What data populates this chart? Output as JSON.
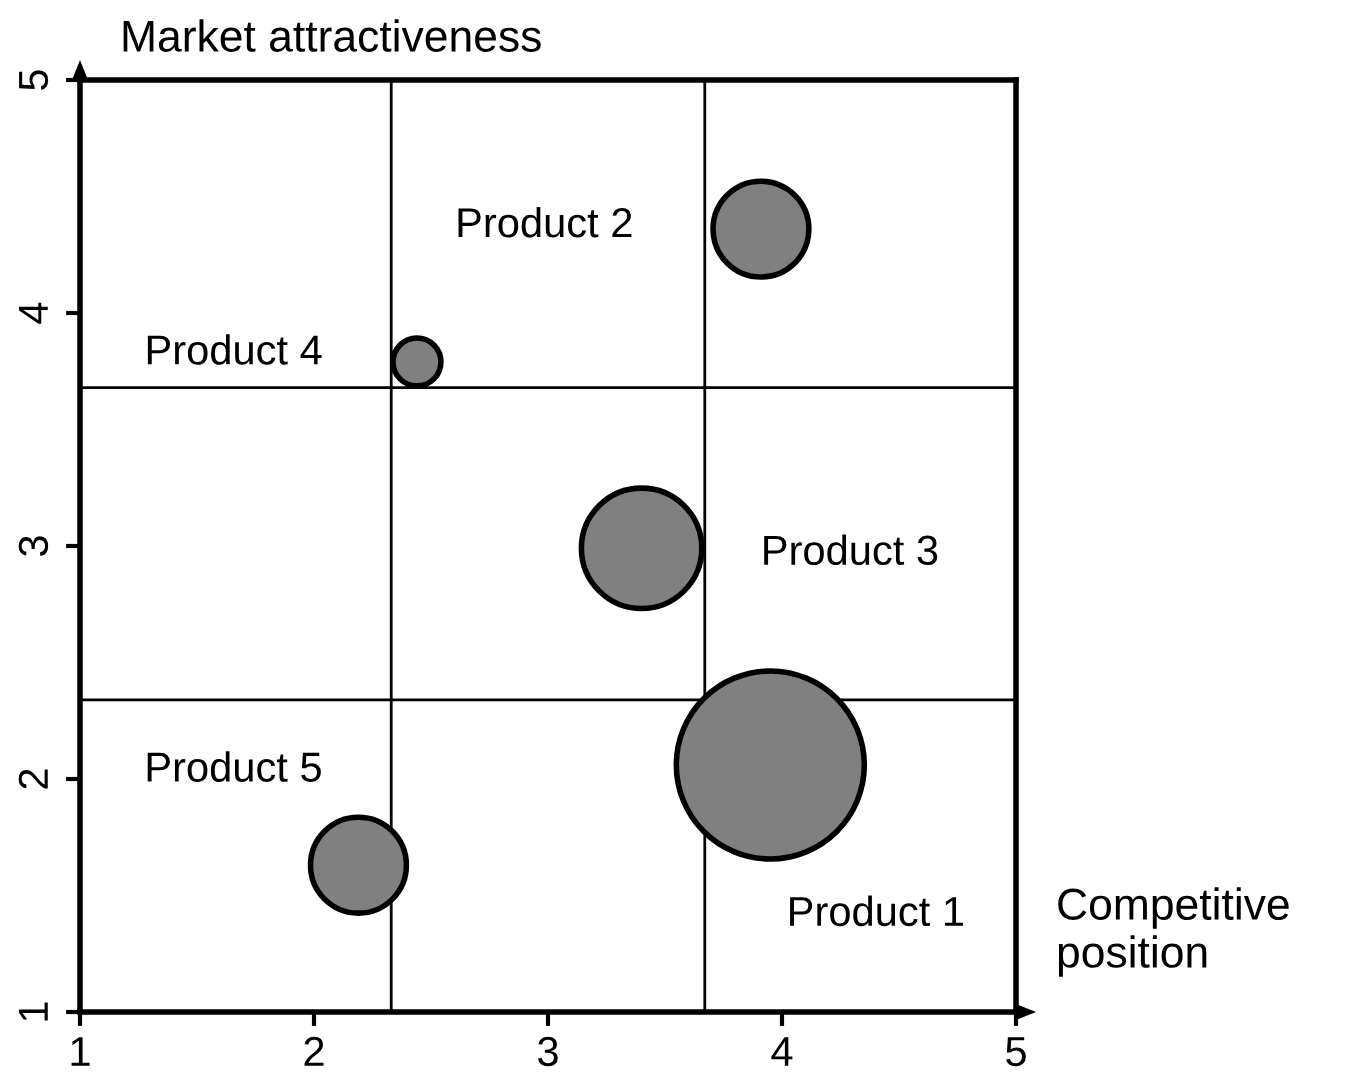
{
  "chart_data": {
    "type": "bubble",
    "xlabel": "Competitive\nposition",
    "ylabel": "Market attractiveness",
    "xlim": [
      1,
      5
    ],
    "ylim": [
      1,
      5
    ],
    "xticks": [
      1,
      2,
      3,
      4,
      5
    ],
    "yticks": [
      1,
      2,
      3,
      4,
      5
    ],
    "grid": false,
    "legend": false,
    "ref_lines": [
      {
        "axis": "x",
        "value": 2.33,
        "color": "#000000"
      },
      {
        "axis": "x",
        "value": 3.67,
        "color": "#000000"
      },
      {
        "axis": "y",
        "value": 2.34,
        "color": "#000000"
      },
      {
        "axis": "y",
        "value": 3.68,
        "color": "#000000"
      }
    ],
    "series": [
      {
        "name": "Product 1",
        "color": "#808080",
        "x": [
          3.95
        ],
        "values": [
          2.06
        ],
        "sizes": [
          1
        ]
      },
      {
        "name": "Product 2",
        "color": "#808080",
        "x": [
          3.91
        ],
        "values": [
          4.36
        ],
        "sizes": [
          0.26
        ]
      },
      {
        "name": "Product 3",
        "color": "#808080",
        "x": [
          3.4
        ],
        "values": [
          2.99
        ],
        "sizes": [
          0.41
        ]
      },
      {
        "name": "Product 4",
        "color": "#808080",
        "x": [
          2.44
        ],
        "values": [
          3.79
        ],
        "sizes": [
          0.065
        ]
      },
      {
        "name": "Product 5",
        "color": "#808080",
        "x": [
          2.19
        ],
        "values": [
          1.63
        ],
        "sizes": [
          0.26
        ]
      }
    ]
  }
}
